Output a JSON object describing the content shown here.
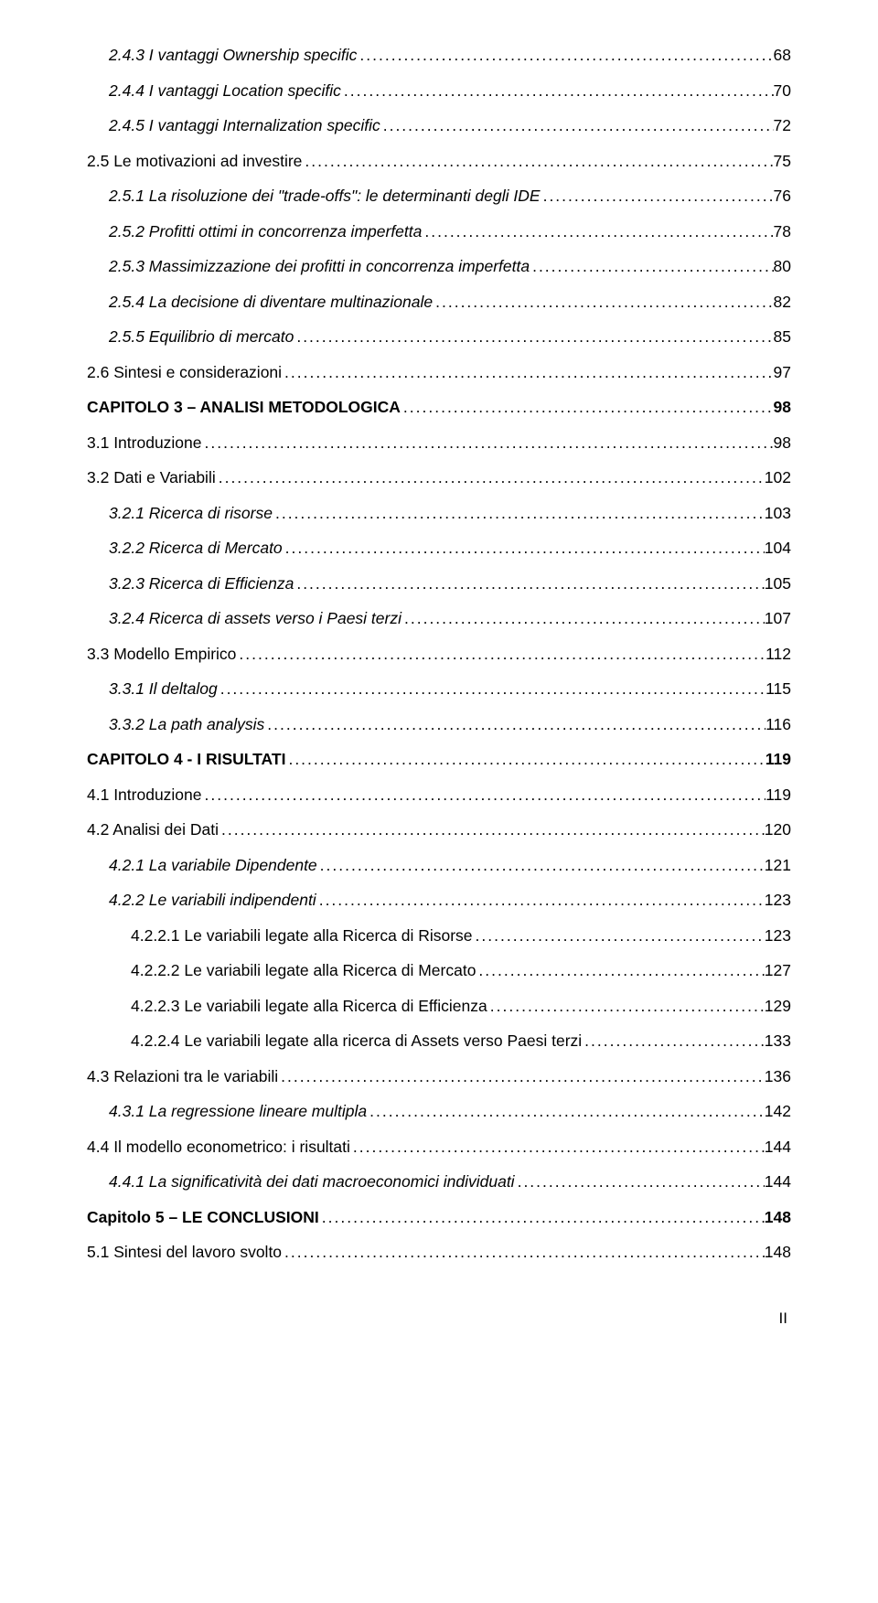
{
  "toc": [
    {
      "title": "2.4.3 I vantaggi Ownership specific",
      "page": "68",
      "italic": true,
      "indent": 1
    },
    {
      "title": "2.4.4 I vantaggi Location specific",
      "page": "70",
      "italic": true,
      "indent": 1
    },
    {
      "title": "2.4.5 I vantaggi Internalization specific",
      "page": "72",
      "italic": true,
      "indent": 1
    },
    {
      "title": "2.5 Le motivazioni ad investire",
      "page": "75",
      "indent": 0
    },
    {
      "title": "2.5.1 La risoluzione dei \"trade-offs\": le determinanti degli IDE",
      "page": "76",
      "italic": true,
      "indent": 1
    },
    {
      "title": "2.5.2 Profitti ottimi in concorrenza imperfetta",
      "page": "78",
      "italic": true,
      "indent": 1
    },
    {
      "title": "2.5.3 Massimizzazione dei profitti in concorrenza imperfetta",
      "page": "80",
      "italic": true,
      "indent": 1
    },
    {
      "title": "2.5.4 La decisione di diventare multinazionale",
      "page": "82",
      "italic": true,
      "indent": 1
    },
    {
      "title": "2.5.5 Equilibrio di mercato",
      "page": "85",
      "italic": true,
      "indent": 1
    },
    {
      "title": "2.6 Sintesi e considerazioni",
      "page": "97",
      "indent": 0
    },
    {
      "title": "CAPITOLO 3 – ANALISI METODOLOGICA",
      "page": "98",
      "bold": true,
      "indent": 0
    },
    {
      "title": "3.1 Introduzione",
      "page": "98",
      "indent": 0
    },
    {
      "title": "3.2 Dati e Variabili",
      "page": "102",
      "indent": 0
    },
    {
      "title": "3.2.1 Ricerca di risorse",
      "page": "103",
      "italic": true,
      "indent": 1
    },
    {
      "title": "3.2.2 Ricerca di Mercato",
      "page": "104",
      "italic": true,
      "indent": 1
    },
    {
      "title": "3.2.3 Ricerca di Efficienza",
      "page": "105",
      "italic": true,
      "indent": 1
    },
    {
      "title": "3.2.4 Ricerca di assets verso i Paesi terzi",
      "page": "107",
      "italic": true,
      "indent": 1
    },
    {
      "title": "3.3  Modello Empirico",
      "page": "112",
      "indent": 0
    },
    {
      "title": "3.3.1 Il deltalog",
      "page": "115",
      "italic": true,
      "indent": 1
    },
    {
      "title": "3.3.2 La path analysis",
      "page": "116",
      "italic": true,
      "indent": 1
    },
    {
      "title": "CAPITOLO 4 - I RISULTATI",
      "page": "119",
      "bold": true,
      "indent": 0
    },
    {
      "title": "4.1 Introduzione",
      "page": "119",
      "indent": 0
    },
    {
      "title": "4.2 Analisi dei Dati",
      "page": "120",
      "indent": 0
    },
    {
      "title": "4.2.1 La variabile Dipendente",
      "page": "121",
      "italic": true,
      "indent": 1
    },
    {
      "title": "4.2.2 Le variabili indipendenti",
      "page": "123",
      "italic": true,
      "indent": 1
    },
    {
      "title": "4.2.2.1 Le variabili legate alla Ricerca di Risorse",
      "page": "123",
      "indent": 2
    },
    {
      "title": "4.2.2.2 Le variabili legate alla Ricerca di Mercato",
      "page": "127",
      "indent": 2
    },
    {
      "title": "4.2.2.3 Le variabili legate alla Ricerca di Efficienza",
      "page": "129",
      "indent": 2
    },
    {
      "title": "4.2.2.4 Le variabili legate alla ricerca di Assets verso Paesi terzi",
      "page": "133",
      "indent": 2
    },
    {
      "title": "4.3 Relazioni tra le variabili",
      "page": "136",
      "indent": 0
    },
    {
      "title": "4.3.1 La regressione lineare multipla",
      "page": "142",
      "italic": true,
      "indent": 1
    },
    {
      "title": "4.4 Il modello econometrico: i risultati",
      "page": "144",
      "indent": 0
    },
    {
      "title": "4.4.1 La significatività dei dati macroeconomici individuati",
      "page": "144",
      "italic": true,
      "indent": 1
    },
    {
      "title": "Capitolo 5 – LE CONCLUSIONI",
      "page": "148",
      "bold": true,
      "indent": 0
    },
    {
      "title": "5.1 Sintesi del lavoro svolto",
      "page": "148",
      "indent": 0
    }
  ],
  "footer": {
    "page_label": "II"
  }
}
